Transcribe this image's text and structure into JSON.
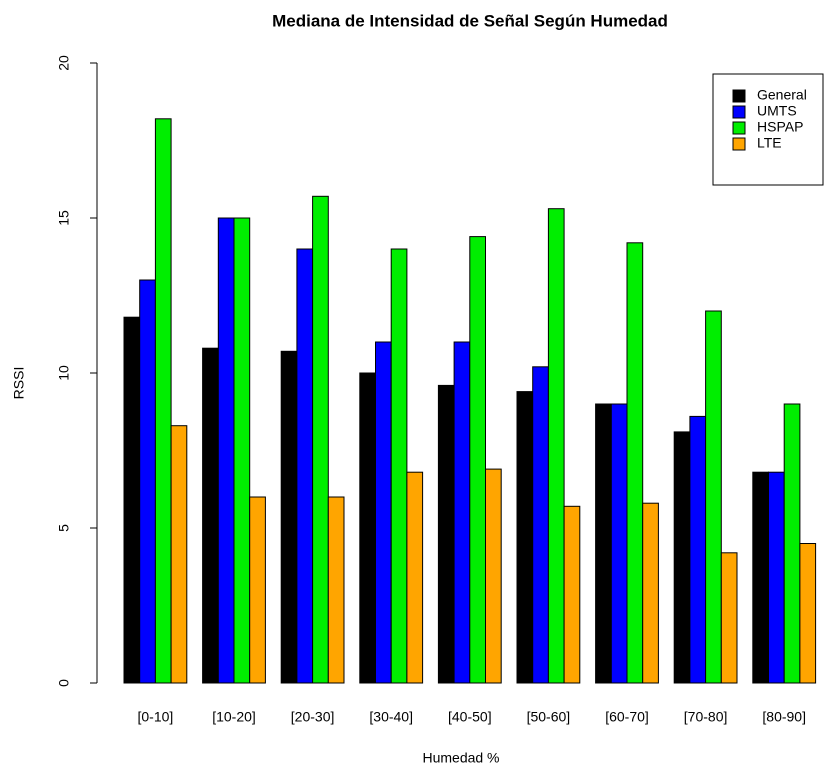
{
  "chart_data": {
    "type": "bar",
    "title": "Mediana de Intensidad de Señal Según Humedad",
    "x_label": "Humedad %",
    "y_label": "RSSI",
    "categories": [
      "[0-10]",
      "[10-20]",
      "[20-30]",
      "[30-40]",
      "[40-50]",
      "[50-60]",
      "[60-70]",
      "[70-80]",
      "[80-90]"
    ],
    "series": [
      {
        "name": "General",
        "color": "#000000",
        "values": [
          11.8,
          10.8,
          10.7,
          10,
          9.6,
          9.4,
          9,
          8.1,
          6.8
        ]
      },
      {
        "name": "UMTS",
        "color": "#0000ff",
        "values": [
          13,
          15,
          14,
          11,
          11,
          10.2,
          9,
          8.6,
          6.8
        ]
      },
      {
        "name": "HSPAP",
        "color": "#00ee00",
        "values": [
          18.2,
          15,
          15.7,
          14,
          14.4,
          15.3,
          14.2,
          12,
          9
        ]
      },
      {
        "name": "LTE",
        "color": "#ffa500",
        "values": [
          8.3,
          6,
          6,
          6.8,
          6.9,
          5.7,
          5.8,
          4.2,
          4.5
        ]
      }
    ],
    "ylim": [
      0,
      20
    ],
    "yticks": [
      0,
      5,
      10,
      15,
      20
    ],
    "legend": "topright",
    "grid": false
  }
}
